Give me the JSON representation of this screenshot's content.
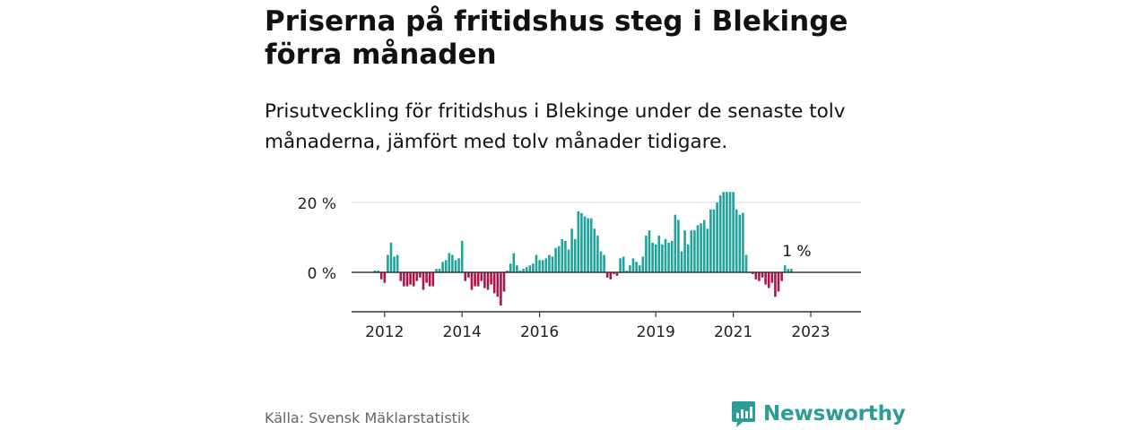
{
  "header": {
    "title": "Priserna på fritidshus steg i Blekinge förra månaden",
    "subtitle": "Prisutveckling för fritidshus i Blekinge under de senaste tolv månaderna, jämfört med tolv månader tidigare."
  },
  "footer": {
    "source": "Källa: Svensk Mäklarstatistik",
    "brand": "Newsworthy"
  },
  "colors": {
    "positive": "#1fa39c",
    "negative": "#b0124a",
    "grid": "#dddddd",
    "axis": "#333333",
    "brand": "#2b9c97"
  },
  "chart_data": {
    "type": "bar",
    "title": "",
    "xlabel": "",
    "ylabel": "",
    "unit": "%",
    "ylim": [
      -11,
      23
    ],
    "y_ticks": [
      {
        "value": 0,
        "label": "0 %"
      },
      {
        "value": 20,
        "label": "20 %"
      }
    ],
    "x_ticks": [
      {
        "year": 2012,
        "label": "2012"
      },
      {
        "year": 2014,
        "label": "2014"
      },
      {
        "year": 2016,
        "label": "2016"
      },
      {
        "year": 2019,
        "label": "2019"
      },
      {
        "year": 2021,
        "label": "2021"
      },
      {
        "year": 2023,
        "label": "2023"
      }
    ],
    "grid": true,
    "annotation": {
      "label": "1 %",
      "value": 1
    },
    "series": [
      {
        "start": "2011-10",
        "values": [
          0.5,
          0.5,
          -2,
          -3,
          5,
          8.5,
          4.5,
          5,
          -2.5,
          -4,
          -4,
          -3.5,
          -4,
          -2.5,
          -1.5,
          -5,
          -3,
          -4,
          -4,
          1,
          1,
          3,
          3.5,
          5.5,
          5,
          3.5,
          4,
          9,
          -2.5,
          -1.5,
          -5,
          -4,
          -4,
          -2.5,
          -4.5,
          -5,
          -3.5,
          -6,
          -7,
          -9.5,
          -5.5,
          0.5,
          2.5,
          5.5,
          2,
          0.5,
          1,
          1.5,
          2,
          2.5,
          5,
          3.5,
          3.5,
          4,
          5,
          4.5,
          7,
          7.5,
          9.5,
          9,
          6.5,
          12.5,
          9.5,
          17.5,
          17,
          16,
          15.5,
          15.5,
          12.5,
          10.5,
          6,
          5,
          -1.5,
          -2,
          -0.5,
          -1,
          4,
          4.5,
          0.5,
          2,
          4,
          3,
          2,
          4.5,
          10.5,
          12,
          8.5,
          8,
          10.5,
          8,
          9.5,
          8.5,
          9,
          16.5,
          15,
          6,
          12,
          8,
          12,
          12,
          13.5,
          14,
          15,
          12.5,
          18,
          18,
          20,
          22,
          23,
          23,
          23,
          23,
          18,
          16.5,
          17,
          5,
          0,
          -0.5,
          -2,
          -2.5,
          -1.5,
          -3.5,
          -4.5,
          -3,
          -7,
          -5.5,
          -2.5,
          2,
          1,
          1
        ]
      }
    ]
  }
}
